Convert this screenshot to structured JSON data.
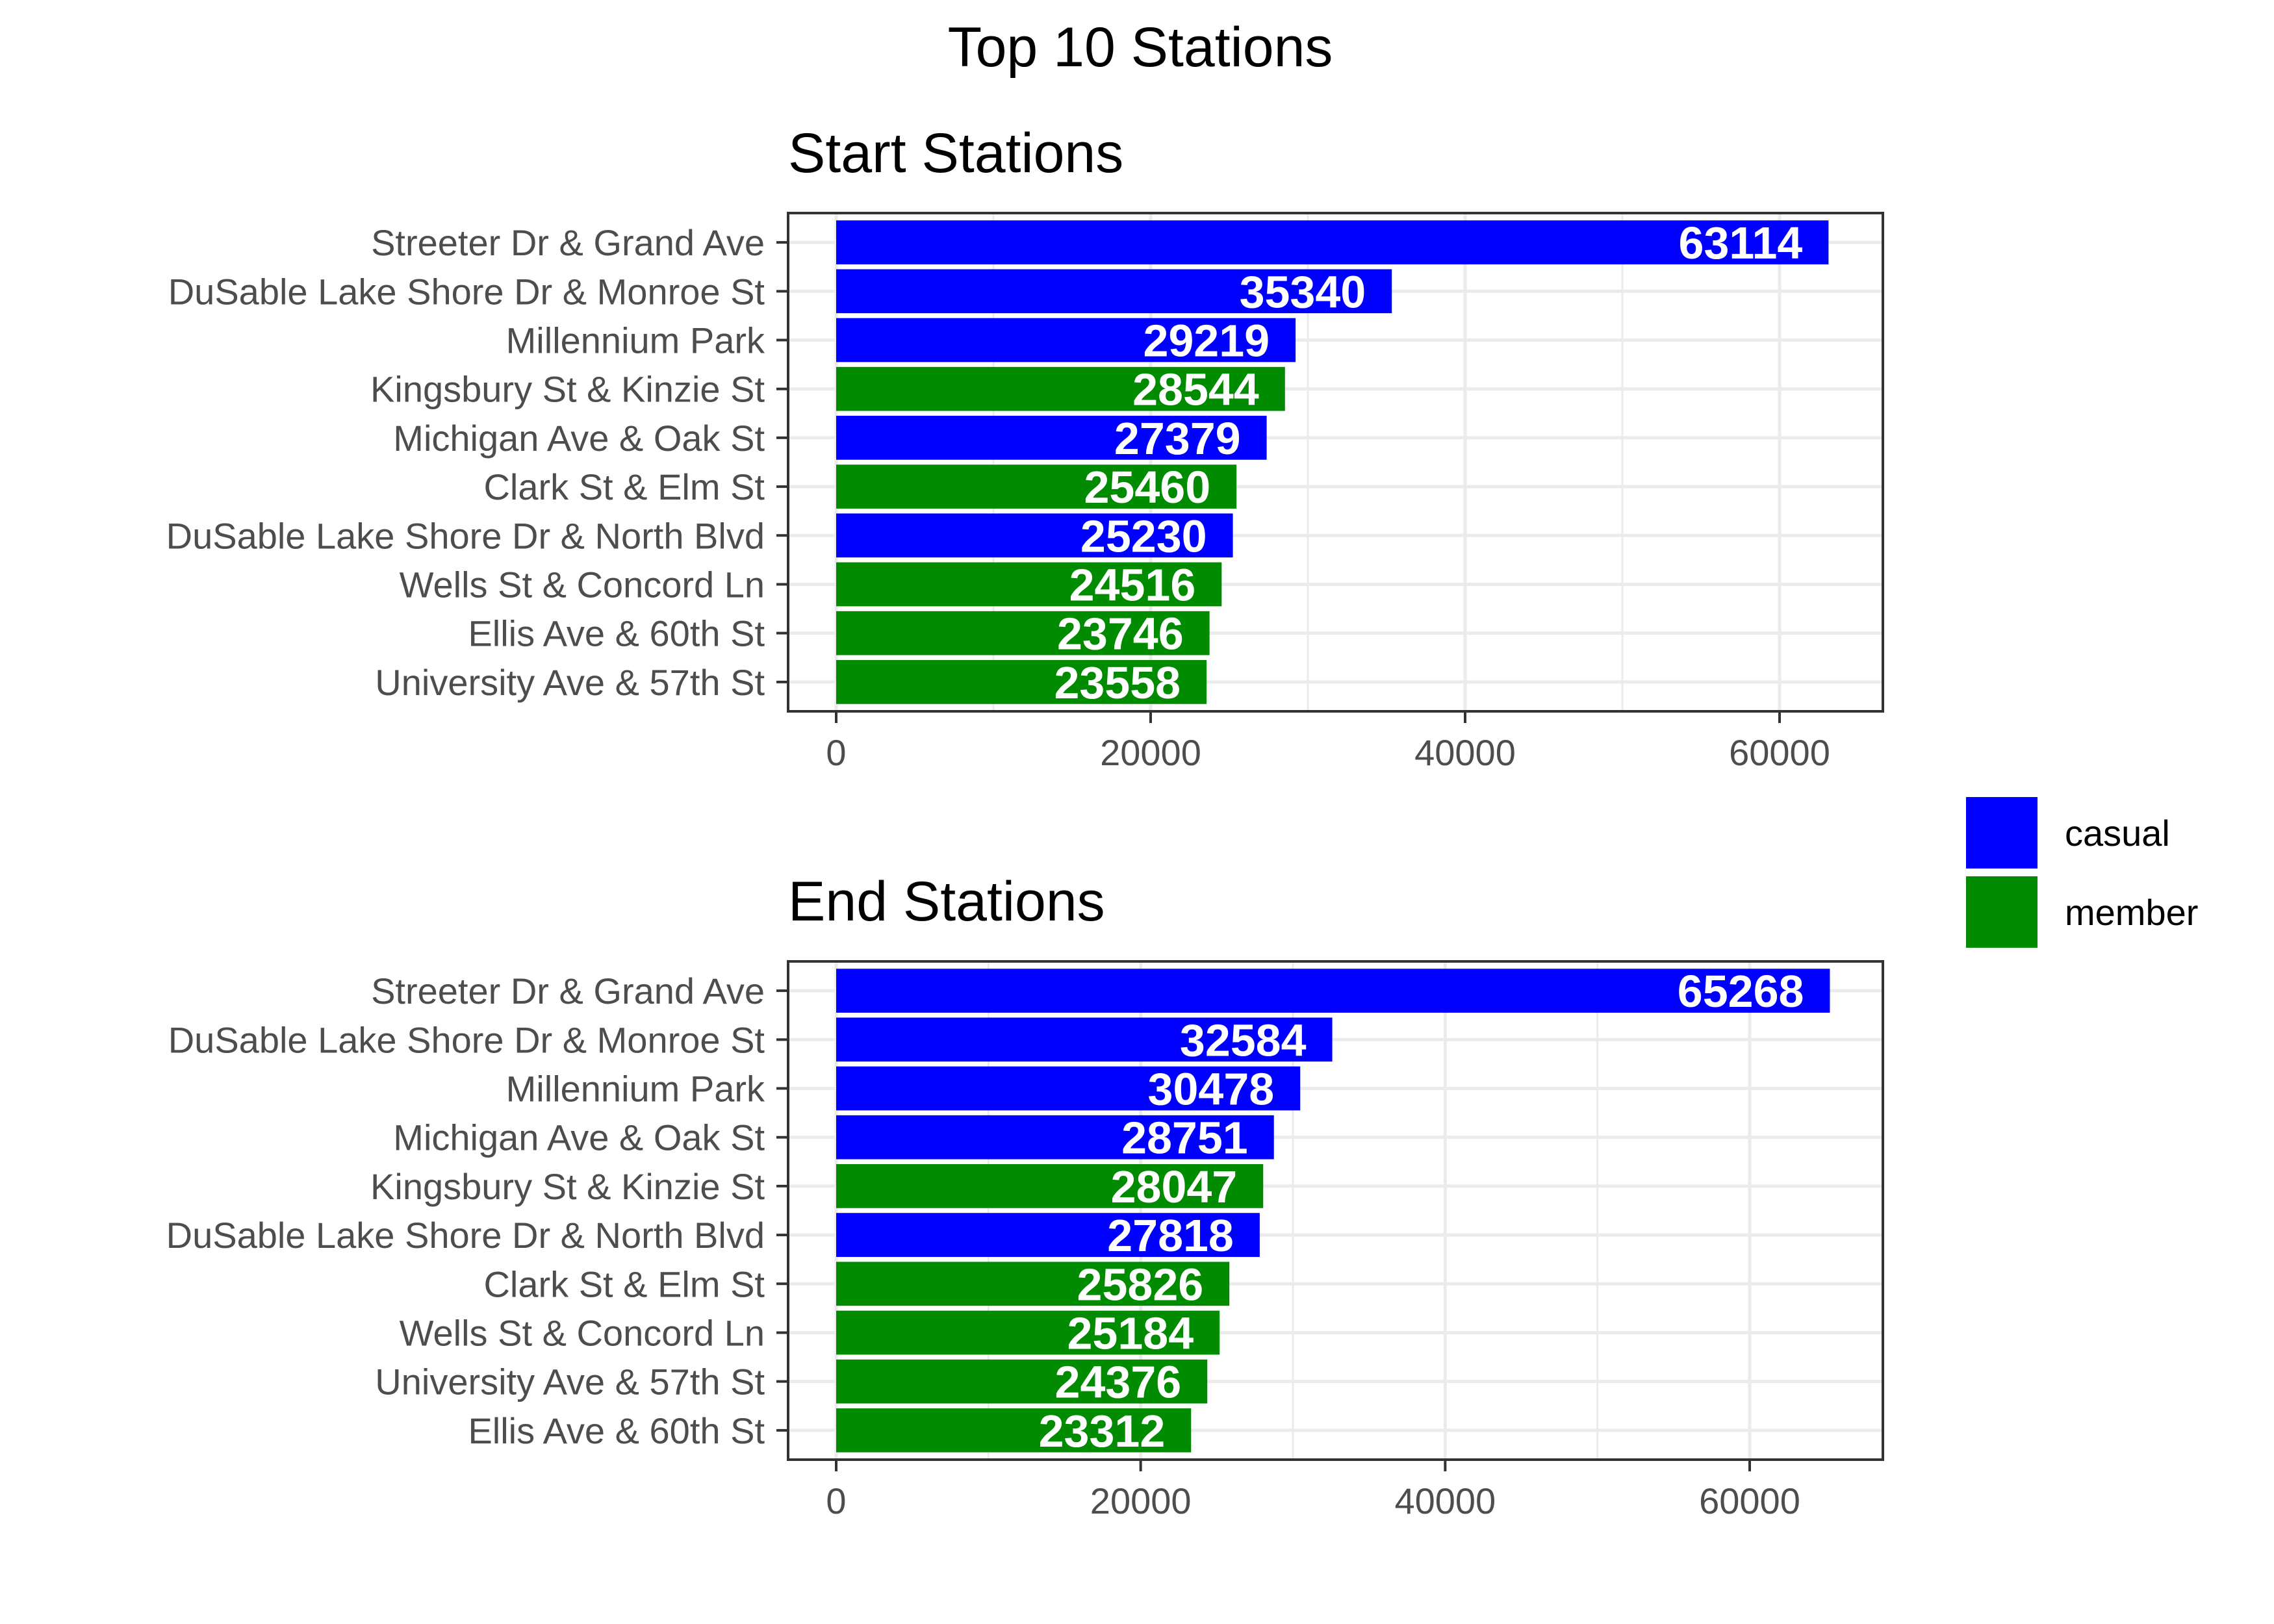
{
  "title": "Top 10 Stations",
  "colors": {
    "casual": "#0000FF",
    "member": "#008B00",
    "grid": "#EBEBEB",
    "frame": "#333333",
    "text": "#4D4D4D"
  },
  "legend": {
    "placement": "right",
    "items": [
      {
        "key": "casual",
        "label": "casual"
      },
      {
        "key": "member",
        "label": "member"
      }
    ]
  },
  "chart_data": [
    {
      "type": "bar",
      "orientation": "horizontal",
      "title": "Start Stations",
      "xlim": [
        0,
        66000
      ],
      "xticks": [
        0,
        20000,
        40000,
        60000
      ],
      "categories": [
        "Streeter Dr & Grand Ave",
        "DuSable Lake Shore Dr & Monroe St",
        "Millennium Park",
        "Kingsbury St & Kinzie St",
        "Michigan Ave & Oak St",
        "Clark St & Elm St",
        "DuSable Lake Shore Dr & North Blvd",
        "Wells St & Concord Ln",
        "Ellis Ave & 60th St",
        "University Ave & 57th St"
      ],
      "values": [
        63114,
        35340,
        29219,
        28544,
        27379,
        25460,
        25230,
        24516,
        23746,
        23558
      ],
      "groups": [
        "casual",
        "casual",
        "casual",
        "member",
        "casual",
        "member",
        "casual",
        "member",
        "member",
        "member"
      ]
    },
    {
      "type": "bar",
      "orientation": "horizontal",
      "title": "End Stations",
      "xlim": [
        0,
        68000
      ],
      "xticks": [
        0,
        20000,
        40000,
        60000
      ],
      "categories": [
        "Streeter Dr & Grand Ave",
        "DuSable Lake Shore Dr & Monroe St",
        "Millennium Park",
        "Michigan Ave & Oak St",
        "Kingsbury St & Kinzie St",
        "DuSable Lake Shore Dr & North Blvd",
        "Clark St & Elm St",
        "Wells St & Concord Ln",
        "University Ave & 57th St",
        "Ellis Ave & 60th St"
      ],
      "values": [
        65268,
        32584,
        30478,
        28751,
        28047,
        27818,
        25826,
        25184,
        24376,
        23312
      ],
      "groups": [
        "casual",
        "casual",
        "casual",
        "casual",
        "member",
        "casual",
        "member",
        "member",
        "member",
        "member"
      ]
    }
  ]
}
